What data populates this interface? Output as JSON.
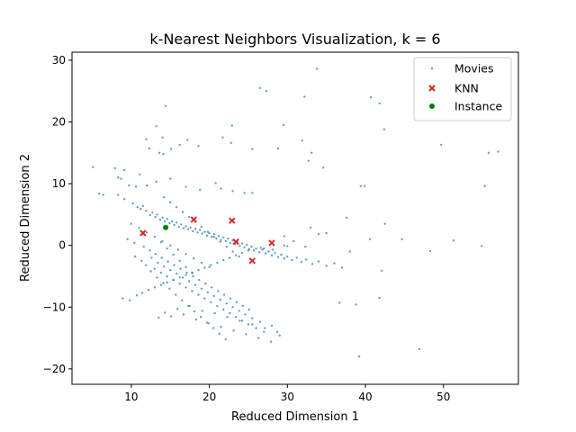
{
  "chart_data": {
    "type": "scatter",
    "title": "k-Nearest Neighbors Visualization, k = 6",
    "xlabel": "Reduced Dimension 1",
    "ylabel": "Reduced Dimension 2",
    "xlim": [
      2.4,
      59.6
    ],
    "ylim": [
      -22.5,
      31.3
    ],
    "xticks": [
      10,
      20,
      30,
      40,
      50
    ],
    "yticks": [
      -20,
      -10,
      0,
      10,
      20,
      30
    ],
    "grid": false,
    "legend_position": "top-right",
    "colors": {
      "movies": "#1f77b4",
      "knn": "#d62728",
      "instance": "#008000"
    },
    "series": [
      {
        "name": "Movies",
        "marker": "dot",
        "x": [
          33.8,
          26.5,
          27.3,
          32.2,
          40.7,
          41.8,
          42.4,
          29.5,
          31.9,
          22.9,
          21.7,
          14.4,
          13.2,
          14.0,
          11.9,
          16.2,
          17.2,
          18.6,
          12.3,
          15.1,
          13.6,
          14.1,
          22.8,
          25.5,
          28.8,
          33.1,
          32.7,
          34.6,
          49.7,
          57.0,
          55.8,
          5.1,
          5.9,
          6.4,
          7.9,
          8.3,
          8.7,
          9.1,
          9.7,
          10.6,
          11.1,
          12.0,
          13.2,
          15.0,
          17.0,
          18.8,
          20.8,
          21.5,
          23.0,
          24.5,
          25.5,
          39.4,
          39.9,
          55.3,
          37.6,
          42.5,
          44.7,
          40.6,
          33.0,
          34.0,
          35.0,
          29.6,
          30.8,
          32.3,
          28.1,
          26.6,
          27.0,
          30.0,
          29.6,
          36.7,
          38.8,
          39.2,
          41.8,
          42.1,
          46.9,
          48.3,
          51.3,
          54.9,
          8.3,
          9.1,
          10.2,
          10.8,
          11.2,
          11.5,
          11.9,
          12.4,
          12.7,
          13.1,
          13.3,
          13.7,
          14.0,
          14.3,
          14.6,
          14.9,
          15.2,
          15.5,
          15.8,
          16.1,
          16.4,
          16.7,
          17.0,
          17.3,
          17.6,
          17.9,
          18.2,
          18.5,
          18.8,
          19.1,
          19.4,
          19.7,
          20.0,
          20.3,
          20.6,
          20.9,
          21.2,
          21.5,
          21.8,
          22.1,
          22.4,
          22.7,
          23.0,
          23.3,
          23.6,
          23.9,
          24.2,
          24.5,
          24.8,
          25.1,
          25.4,
          25.7,
          26.0,
          26.4,
          26.8,
          27.2,
          27.6,
          28.0,
          28.4,
          28.8,
          29.2,
          29.6,
          30.0,
          30.6,
          31.2,
          31.8,
          32.4,
          33.2,
          34.0,
          35.0,
          36.0,
          37.0,
          38.0,
          10.5,
          11.3,
          11.9,
          12.6,
          13.0,
          13.4,
          13.8,
          14.2,
          14.6,
          15.0,
          15.4,
          15.8,
          16.2,
          16.6,
          17.0,
          17.4,
          17.8,
          18.2,
          18.6,
          19.0,
          19.4,
          19.8,
          20.2,
          20.6,
          21.0,
          21.4,
          21.8,
          22.2,
          22.6,
          23.0,
          23.4,
          23.8,
          24.2,
          24.6,
          25.0,
          25.5,
          26.0,
          26.5,
          27.0,
          28.0,
          29.0,
          13.5,
          14.3,
          15.1,
          15.9,
          16.7,
          17.5,
          18.3,
          19.1,
          19.9,
          20.7,
          21.5,
          22.3,
          23.1,
          23.9,
          24.7,
          25.5,
          26.3,
          27.1,
          27.9,
          28.7,
          9.5,
          10.4,
          11.6,
          12.4,
          13.1,
          13.9,
          14.7,
          15.5,
          16.3,
          17.1,
          17.9,
          18.7,
          19.5,
          20.3,
          21.1,
          21.9,
          22.7,
          23.5,
          24.3,
          25.1,
          8.9,
          9.8,
          10.7,
          11.4,
          12.2,
          13.0,
          13.8,
          14.6,
          15.4,
          16.2,
          17.0,
          17.8,
          18.6,
          19.4,
          20.2,
          21.0,
          21.8,
          22.6,
          23.4,
          24.2,
          25.0,
          12.5,
          13.3,
          14.1,
          14.9,
          15.7,
          16.5,
          17.3,
          18.1,
          18.9,
          19.7,
          20.5,
          21.3,
          22.1,
          13.8,
          14.6,
          15.4,
          16.2,
          17.0,
          17.8,
          14.2,
          15.0,
          15.8,
          16.6,
          17.4,
          18.2,
          19.0,
          19.8,
          20.6,
          21.4,
          22.2,
          23.0,
          23.8,
          10.0,
          11.0,
          12.0,
          13.0,
          14.0,
          15.0,
          16.0,
          17.0,
          18.0,
          19.0,
          20.0
        ],
        "y": [
          28.6,
          25.5,
          25.0,
          24.1,
          24.0,
          23.0,
          18.8,
          19.5,
          17.0,
          19.4,
          17.5,
          22.6,
          19.3,
          17.5,
          17.2,
          16.3,
          17.1,
          16.1,
          15.7,
          15.6,
          15.0,
          14.8,
          16.6,
          15.6,
          15.7,
          15.0,
          13.7,
          12.6,
          16.3,
          15.2,
          15.0,
          12.7,
          8.4,
          8.2,
          12.5,
          11.0,
          10.8,
          12.2,
          9.7,
          9.5,
          11.5,
          9.7,
          10.3,
          10.8,
          9.5,
          9.0,
          10.1,
          9.2,
          8.8,
          8.5,
          8.5,
          9.6,
          9.6,
          9.6,
          4.5,
          3.5,
          1.0,
          1.0,
          2.9,
          1.8,
          2.0,
          1.5,
          0.7,
          -0.2,
          -0.7,
          -0.4,
          -0.5,
          -0.1,
          0.0,
          -9.3,
          -9.6,
          -18.0,
          -8.5,
          -4.1,
          -16.8,
          -0.9,
          0.8,
          -0.1,
          8.2,
          7.5,
          6.8,
          6.2,
          5.9,
          6.4,
          5.6,
          4.9,
          5.3,
          4.6,
          5.0,
          4.2,
          4.5,
          3.9,
          4.3,
          3.6,
          3.9,
          3.3,
          3.7,
          3.0,
          3.4,
          2.8,
          3.1,
          2.6,
          2.9,
          2.3,
          2.7,
          2.1,
          2.5,
          1.9,
          2.2,
          1.6,
          2.0,
          1.4,
          1.8,
          1.1,
          1.5,
          0.9,
          1.3,
          0.7,
          1.1,
          0.4,
          0.8,
          0.2,
          0.6,
          -0.1,
          0.3,
          -0.3,
          0.1,
          -0.6,
          -0.2,
          -0.8,
          -0.5,
          -1.1,
          -0.7,
          -1.3,
          -1.0,
          -1.6,
          -1.2,
          -1.9,
          -1.5,
          -2.1,
          -1.8,
          -2.4,
          -2.0,
          -2.7,
          -2.3,
          -3.0,
          -2.6,
          -3.3,
          -2.9,
          -3.6,
          -1.0,
          -1.8,
          -2.5,
          -3.2,
          -2.0,
          -3.8,
          -2.8,
          -4.4,
          -3.4,
          -5.0,
          -4.0,
          -5.6,
          -4.6,
          -6.2,
          -5.2,
          -6.8,
          -5.8,
          -7.4,
          -6.4,
          -8.0,
          -7.0,
          -8.6,
          -7.6,
          -9.2,
          -8.2,
          -9.8,
          -8.8,
          -10.4,
          -9.4,
          -11.0,
          -10.0,
          -11.6,
          -10.6,
          -12.2,
          -11.2,
          -12.8,
          -11.8,
          -13.4,
          -12.4,
          -14.0,
          -13.0,
          -14.6,
          -11.7,
          -10.9,
          -11.5,
          -10.3,
          -11.2,
          -9.8,
          -12.0,
          -10.6,
          -12.6,
          -11.0,
          -13.2,
          -11.6,
          -13.8,
          -12.2,
          -14.4,
          -12.8,
          -15.0,
          -13.4,
          -15.6,
          -14.0,
          1.0,
          0.4,
          -0.2,
          -0.8,
          -1.4,
          -2.0,
          -2.6,
          -3.2,
          -3.8,
          -4.4,
          -5.0,
          -5.6,
          -6.2,
          -6.8,
          -7.4,
          -8.0,
          -8.6,
          -9.2,
          -9.8,
          -10.4,
          -8.6,
          -8.9,
          -8.1,
          -7.7,
          -7.2,
          -6.8,
          -6.4,
          -6.0,
          -5.6,
          -5.2,
          -4.8,
          -4.4,
          -4.0,
          -3.6,
          -3.2,
          -2.8,
          -2.4,
          -2.0,
          -1.6,
          -1.2,
          -0.8,
          -4.2,
          -5.2,
          -6.1,
          -7.0,
          -8.0,
          -8.9,
          -9.8,
          -10.7,
          -11.6,
          -12.5,
          -13.4,
          -14.3,
          -15.2,
          0.5,
          -0.5,
          -1.5,
          -2.5,
          -3.5,
          -4.5,
          7.8,
          7.0,
          6.2,
          5.4,
          4.6,
          3.8,
          3.0,
          2.2,
          1.4,
          0.6,
          -0.2,
          -1.0,
          -1.8,
          3.5,
          2.8,
          2.1,
          1.4,
          0.7,
          0.0,
          -0.7,
          -1.4,
          -2.1,
          -2.8,
          -3.5
        ]
      },
      {
        "name": "KNN",
        "marker": "x",
        "x": [
          11.5,
          18.0,
          22.9,
          23.4,
          25.5,
          28.0
        ],
        "y": [
          2.0,
          4.2,
          4.0,
          0.6,
          -2.5,
          0.4
        ]
      },
      {
        "name": "Instance",
        "marker": "circle",
        "x": [
          14.4
        ],
        "y": [
          2.9
        ]
      }
    ]
  }
}
